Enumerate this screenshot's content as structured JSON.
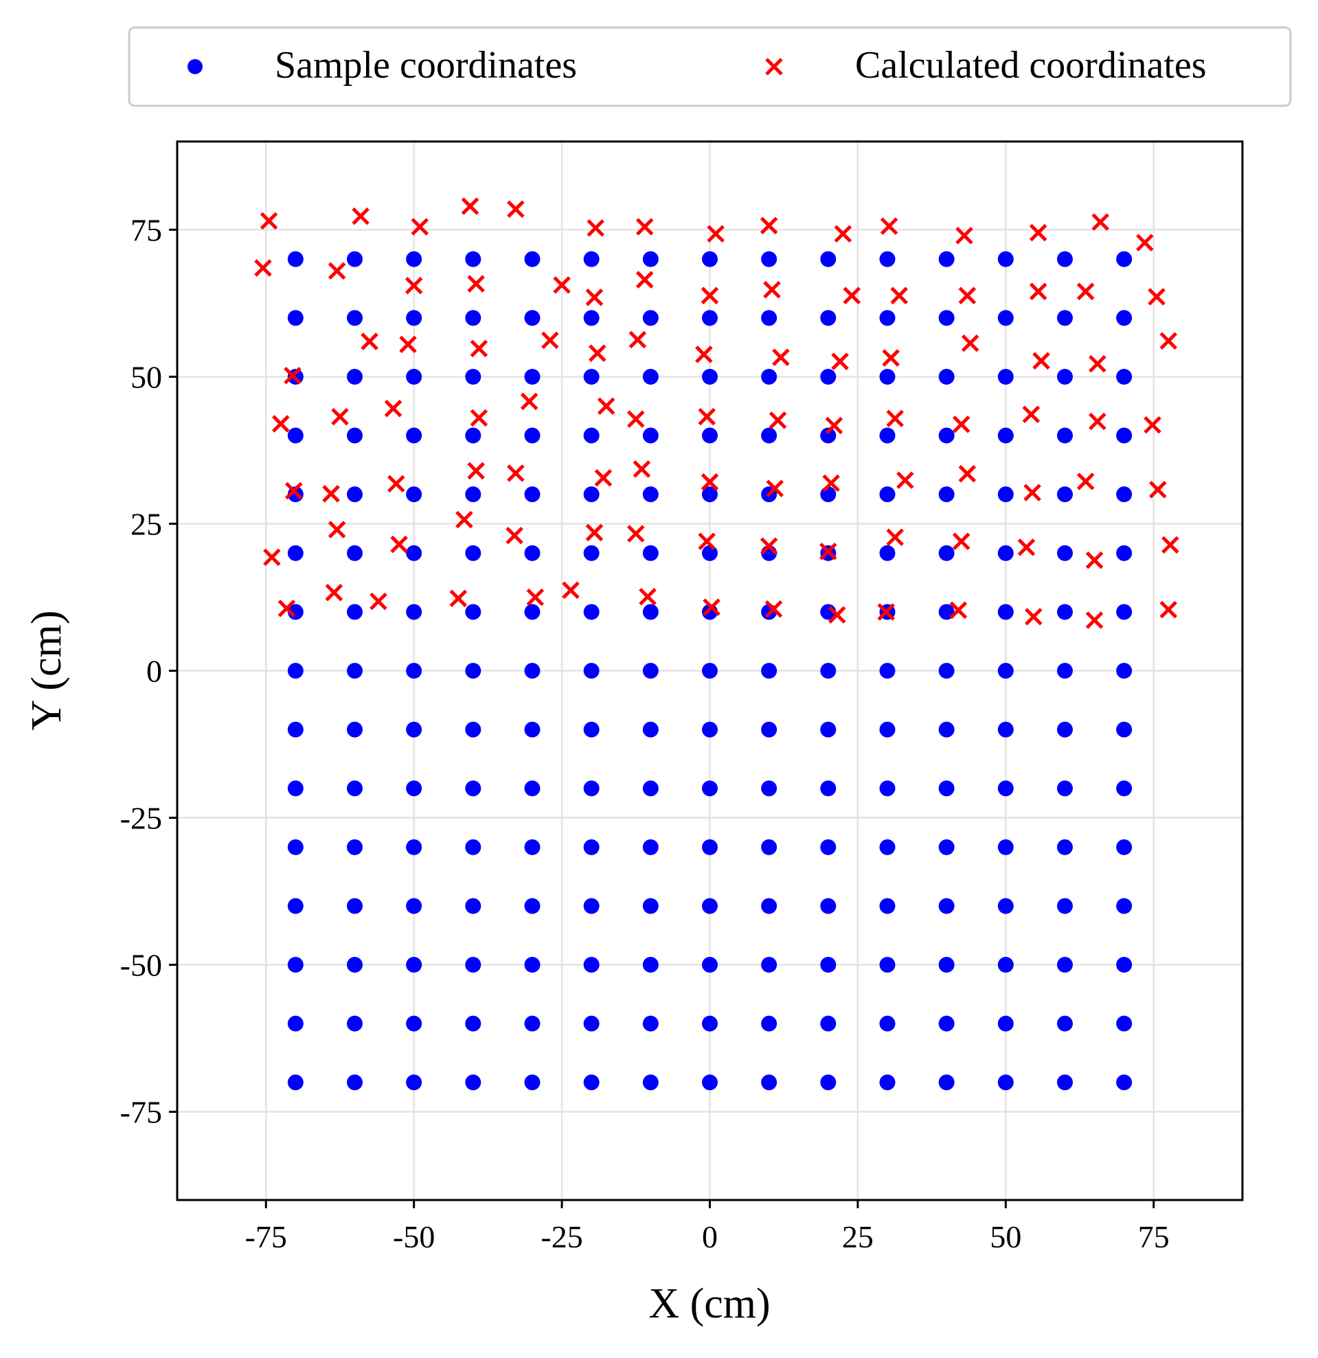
{
  "chart_data": {
    "type": "scatter",
    "xlabel": "X (cm)",
    "ylabel": "Y (cm)",
    "xlim": [
      -90,
      90
    ],
    "ylim": [
      -90,
      90
    ],
    "xticks": [
      -75,
      -50,
      -25,
      0,
      25,
      50,
      75
    ],
    "yticks": [
      -75,
      -50,
      -25,
      0,
      25,
      50,
      75
    ],
    "grid": true,
    "legend_position": "top (above plot)",
    "series": [
      {
        "name": "Sample coordinates",
        "marker": "circle",
        "color": "#0000ff",
        "points": [
          [
            -70,
            70
          ],
          [
            -60,
            70
          ],
          [
            -50,
            70
          ],
          [
            -40,
            70
          ],
          [
            -30,
            70
          ],
          [
            -20,
            70
          ],
          [
            -10,
            70
          ],
          [
            0,
            70
          ],
          [
            10,
            70
          ],
          [
            20,
            70
          ],
          [
            30,
            70
          ],
          [
            40,
            70
          ],
          [
            50,
            70
          ],
          [
            60,
            70
          ],
          [
            70,
            70
          ],
          [
            -70,
            60
          ],
          [
            -60,
            60
          ],
          [
            -50,
            60
          ],
          [
            -40,
            60
          ],
          [
            -30,
            60
          ],
          [
            -20,
            60
          ],
          [
            -10,
            60
          ],
          [
            0,
            60
          ],
          [
            10,
            60
          ],
          [
            20,
            60
          ],
          [
            30,
            60
          ],
          [
            40,
            60
          ],
          [
            50,
            60
          ],
          [
            60,
            60
          ],
          [
            70,
            60
          ],
          [
            -70,
            50
          ],
          [
            -60,
            50
          ],
          [
            -50,
            50
          ],
          [
            -40,
            50
          ],
          [
            -30,
            50
          ],
          [
            -20,
            50
          ],
          [
            -10,
            50
          ],
          [
            0,
            50
          ],
          [
            10,
            50
          ],
          [
            20,
            50
          ],
          [
            30,
            50
          ],
          [
            40,
            50
          ],
          [
            50,
            50
          ],
          [
            60,
            50
          ],
          [
            70,
            50
          ],
          [
            -70,
            40
          ],
          [
            -60,
            40
          ],
          [
            -50,
            40
          ],
          [
            -40,
            40
          ],
          [
            -30,
            40
          ],
          [
            -20,
            40
          ],
          [
            -10,
            40
          ],
          [
            0,
            40
          ],
          [
            10,
            40
          ],
          [
            20,
            40
          ],
          [
            30,
            40
          ],
          [
            40,
            40
          ],
          [
            50,
            40
          ],
          [
            60,
            40
          ],
          [
            70,
            40
          ],
          [
            -70,
            30
          ],
          [
            -60,
            30
          ],
          [
            -50,
            30
          ],
          [
            -40,
            30
          ],
          [
            -30,
            30
          ],
          [
            -20,
            30
          ],
          [
            -10,
            30
          ],
          [
            0,
            30
          ],
          [
            10,
            30
          ],
          [
            20,
            30
          ],
          [
            30,
            30
          ],
          [
            40,
            30
          ],
          [
            50,
            30
          ],
          [
            60,
            30
          ],
          [
            70,
            30
          ],
          [
            -70,
            20
          ],
          [
            -60,
            20
          ],
          [
            -50,
            20
          ],
          [
            -40,
            20
          ],
          [
            -30,
            20
          ],
          [
            -20,
            20
          ],
          [
            -10,
            20
          ],
          [
            0,
            20
          ],
          [
            10,
            20
          ],
          [
            20,
            20
          ],
          [
            30,
            20
          ],
          [
            40,
            20
          ],
          [
            50,
            20
          ],
          [
            60,
            20
          ],
          [
            70,
            20
          ],
          [
            -70,
            10
          ],
          [
            -60,
            10
          ],
          [
            -50,
            10
          ],
          [
            -40,
            10
          ],
          [
            -30,
            10
          ],
          [
            -20,
            10
          ],
          [
            -10,
            10
          ],
          [
            0,
            10
          ],
          [
            10,
            10
          ],
          [
            20,
            10
          ],
          [
            30,
            10
          ],
          [
            40,
            10
          ],
          [
            50,
            10
          ],
          [
            60,
            10
          ],
          [
            70,
            10
          ],
          [
            -70,
            0
          ],
          [
            -60,
            0
          ],
          [
            -50,
            0
          ],
          [
            -40,
            0
          ],
          [
            -30,
            0
          ],
          [
            -20,
            0
          ],
          [
            -10,
            0
          ],
          [
            0,
            0
          ],
          [
            10,
            0
          ],
          [
            20,
            0
          ],
          [
            30,
            0
          ],
          [
            40,
            0
          ],
          [
            50,
            0
          ],
          [
            60,
            0
          ],
          [
            70,
            0
          ],
          [
            -70,
            -10
          ],
          [
            -60,
            -10
          ],
          [
            -50,
            -10
          ],
          [
            -40,
            -10
          ],
          [
            -30,
            -10
          ],
          [
            -20,
            -10
          ],
          [
            -10,
            -10
          ],
          [
            0,
            -10
          ],
          [
            10,
            -10
          ],
          [
            20,
            -10
          ],
          [
            30,
            -10
          ],
          [
            40,
            -10
          ],
          [
            50,
            -10
          ],
          [
            60,
            -10
          ],
          [
            70,
            -10
          ],
          [
            -70,
            -20
          ],
          [
            -60,
            -20
          ],
          [
            -50,
            -20
          ],
          [
            -40,
            -20
          ],
          [
            -30,
            -20
          ],
          [
            -20,
            -20
          ],
          [
            -10,
            -20
          ],
          [
            0,
            -20
          ],
          [
            10,
            -20
          ],
          [
            20,
            -20
          ],
          [
            30,
            -20
          ],
          [
            40,
            -20
          ],
          [
            50,
            -20
          ],
          [
            60,
            -20
          ],
          [
            70,
            -20
          ],
          [
            -70,
            -30
          ],
          [
            -60,
            -30
          ],
          [
            -50,
            -30
          ],
          [
            -40,
            -30
          ],
          [
            -30,
            -30
          ],
          [
            -20,
            -30
          ],
          [
            -10,
            -30
          ],
          [
            0,
            -30
          ],
          [
            10,
            -30
          ],
          [
            20,
            -30
          ],
          [
            30,
            -30
          ],
          [
            40,
            -30
          ],
          [
            50,
            -30
          ],
          [
            60,
            -30
          ],
          [
            70,
            -30
          ],
          [
            -70,
            -40
          ],
          [
            -60,
            -40
          ],
          [
            -50,
            -40
          ],
          [
            -40,
            -40
          ],
          [
            -30,
            -40
          ],
          [
            -20,
            -40
          ],
          [
            -10,
            -40
          ],
          [
            0,
            -40
          ],
          [
            10,
            -40
          ],
          [
            20,
            -40
          ],
          [
            30,
            -40
          ],
          [
            40,
            -40
          ],
          [
            50,
            -40
          ],
          [
            60,
            -40
          ],
          [
            70,
            -40
          ],
          [
            -70,
            -50
          ],
          [
            -60,
            -50
          ],
          [
            -50,
            -50
          ],
          [
            -40,
            -50
          ],
          [
            -30,
            -50
          ],
          [
            -20,
            -50
          ],
          [
            -10,
            -50
          ],
          [
            0,
            -50
          ],
          [
            10,
            -50
          ],
          [
            20,
            -50
          ],
          [
            30,
            -50
          ],
          [
            40,
            -50
          ],
          [
            50,
            -50
          ],
          [
            60,
            -50
          ],
          [
            70,
            -50
          ],
          [
            -70,
            -60
          ],
          [
            -60,
            -60
          ],
          [
            -50,
            -60
          ],
          [
            -40,
            -60
          ],
          [
            -30,
            -60
          ],
          [
            -20,
            -60
          ],
          [
            -10,
            -60
          ],
          [
            0,
            -60
          ],
          [
            10,
            -60
          ],
          [
            20,
            -60
          ],
          [
            30,
            -60
          ],
          [
            40,
            -60
          ],
          [
            50,
            -60
          ],
          [
            60,
            -60
          ],
          [
            70,
            -60
          ],
          [
            -70,
            -70
          ],
          [
            -60,
            -70
          ],
          [
            -50,
            -70
          ],
          [
            -40,
            -70
          ],
          [
            -30,
            -70
          ],
          [
            -20,
            -70
          ],
          [
            -10,
            -70
          ],
          [
            0,
            -70
          ],
          [
            10,
            -70
          ],
          [
            20,
            -70
          ],
          [
            30,
            -70
          ],
          [
            40,
            -70
          ],
          [
            50,
            -70
          ],
          [
            60,
            -70
          ],
          [
            70,
            -70
          ]
        ]
      },
      {
        "name": "Calculated coordinates",
        "marker": "x",
        "color": "#ff0000",
        "points": [
          [
            -75.5,
            68.5
          ],
          [
            -74.5,
            76.5
          ],
          [
            -63,
            68
          ],
          [
            -59,
            77.3
          ],
          [
            -50,
            65.5
          ],
          [
            -49,
            75.5
          ],
          [
            -39.5,
            65.8
          ],
          [
            -40.5,
            79
          ],
          [
            -25,
            65.6
          ],
          [
            -32.8,
            78.5
          ],
          [
            -19.5,
            63.5
          ],
          [
            -19.3,
            75.3
          ],
          [
            -11,
            66.5
          ],
          [
            -11,
            75.5
          ],
          [
            0,
            63.8
          ],
          [
            1,
            74.3
          ],
          [
            10.5,
            64.8
          ],
          [
            10,
            75.7
          ],
          [
            24,
            63.8
          ],
          [
            22.5,
            74.3
          ],
          [
            32,
            63.8
          ],
          [
            30.3,
            75.6
          ],
          [
            43.5,
            63.8
          ],
          [
            43,
            74
          ],
          [
            55.5,
            64.5
          ],
          [
            55.5,
            74.5
          ],
          [
            63.5,
            64.5
          ],
          [
            66,
            76.3
          ],
          [
            75.5,
            63.6
          ],
          [
            73.5,
            72.8
          ],
          [
            -57.5,
            56
          ],
          [
            -51,
            55.5
          ],
          [
            -39,
            54.8
          ],
          [
            -27,
            56.2
          ],
          [
            -19,
            54
          ],
          [
            -12.2,
            56.3
          ],
          [
            -1,
            53.8
          ],
          [
            12,
            53.3
          ],
          [
            22,
            52.6
          ],
          [
            30.6,
            53.2
          ],
          [
            44,
            55.7
          ],
          [
            56,
            52.7
          ],
          [
            65.5,
            52.2
          ],
          [
            77.5,
            56.1
          ],
          [
            -70.5,
            50.2
          ],
          [
            -72.5,
            42
          ],
          [
            -62.5,
            43.2
          ],
          [
            -53.5,
            44.6
          ],
          [
            -39,
            43
          ],
          [
            -30.5,
            45.8
          ],
          [
            -17.5,
            45
          ],
          [
            -12.5,
            42.8
          ],
          [
            -0.5,
            43.2
          ],
          [
            11.5,
            42.6
          ],
          [
            21,
            41.7
          ],
          [
            31.3,
            42.9
          ],
          [
            42.5,
            41.9
          ],
          [
            54.3,
            43.6
          ],
          [
            65.5,
            42.4
          ],
          [
            74.8,
            41.8
          ],
          [
            -70.3,
            30.6
          ],
          [
            -64,
            30.1
          ],
          [
            -53,
            31.8
          ],
          [
            -39.5,
            34
          ],
          [
            -32.8,
            33.6
          ],
          [
            -18,
            32.8
          ],
          [
            -11.5,
            34.3
          ],
          [
            0,
            32.1
          ],
          [
            11,
            31
          ],
          [
            20.5,
            31.9
          ],
          [
            33,
            32.4
          ],
          [
            43.5,
            33.5
          ],
          [
            54.5,
            30.3
          ],
          [
            63.5,
            32.2
          ],
          [
            75.7,
            30.8
          ],
          [
            -74,
            19.3
          ],
          [
            -63,
            24
          ],
          [
            -52.5,
            21.5
          ],
          [
            -41.5,
            25.7
          ],
          [
            -33,
            23
          ],
          [
            -19.5,
            23.5
          ],
          [
            -12.5,
            23.3
          ],
          [
            -0.5,
            22
          ],
          [
            10,
            21.2
          ],
          [
            20,
            20.3
          ],
          [
            31.3,
            22.7
          ],
          [
            42.5,
            22
          ],
          [
            53.5,
            21
          ],
          [
            65,
            18.8
          ],
          [
            77.8,
            21.4
          ],
          [
            -71.5,
            10.6
          ],
          [
            -63.5,
            13.3
          ],
          [
            -56,
            11.8
          ],
          [
            -42.5,
            12.3
          ],
          [
            -29.5,
            12.5
          ],
          [
            -23.5,
            13.7
          ],
          [
            -10.5,
            12.6
          ],
          [
            0.3,
            10.8
          ],
          [
            10.8,
            10.5
          ],
          [
            21.5,
            9.5
          ],
          [
            29.8,
            10
          ],
          [
            42,
            10.3
          ],
          [
            54.7,
            9.2
          ],
          [
            65,
            8.6
          ],
          [
            77.5,
            10.4
          ]
        ]
      }
    ]
  },
  "legend": {
    "sample_label": "Sample coordinates",
    "calculated_label": "Calculated coordinates"
  },
  "axes": {
    "xlabel": "X (cm)",
    "ylabel": "Y (cm)"
  }
}
